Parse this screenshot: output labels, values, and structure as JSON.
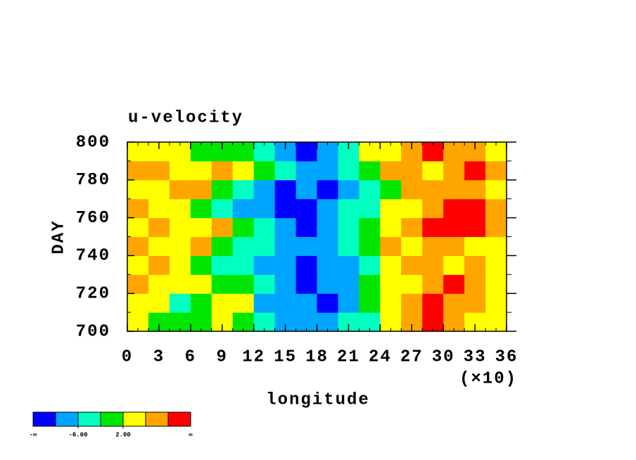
{
  "chart_data": {
    "type": "heatmap",
    "title": "u-velocity",
    "x_label": "longitude",
    "x_multiplier": "(×10)",
    "y_label": "DAY",
    "xlim": [
      0,
      36
    ],
    "xticks": [
      0,
      3,
      6,
      9,
      12,
      15,
      18,
      21,
      24,
      27,
      30,
      33,
      36
    ],
    "xminorticks": [
      1,
      2,
      4,
      5,
      7,
      8,
      10,
      11,
      13,
      14,
      16,
      17,
      19,
      20,
      22,
      23,
      25,
      26,
      28,
      29,
      31,
      32,
      34,
      35
    ],
    "ylim": [
      700,
      800
    ],
    "yticks": [
      700,
      720,
      740,
      760,
      780,
      800
    ],
    "yminorticks": [
      710,
      730,
      750,
      770,
      790
    ],
    "x": [
      1,
      3,
      5,
      7,
      9,
      11,
      13,
      15,
      17,
      19,
      21,
      23,
      25,
      27,
      29,
      31,
      33,
      35
    ],
    "y": [
      705,
      715,
      725,
      735,
      745,
      755,
      765,
      775,
      785,
      795
    ],
    "z": [
      [
        4,
        0,
        -2,
        1,
        3,
        -1,
        -4,
        -8,
        -7,
        -8,
        -6,
        -3,
        3,
        8,
        11,
        7,
        4,
        2
      ],
      [
        3,
        2,
        -4,
        0,
        5,
        2,
        -7,
        -10,
        -9,
        -11,
        -8,
        -2,
        2,
        7,
        12,
        9,
        6,
        3
      ],
      [
        6,
        4,
        2,
        3,
        1,
        0,
        -4,
        -8,
        -12,
        -10,
        -8,
        0,
        3,
        5,
        8,
        10,
        7,
        5
      ],
      [
        2,
        7,
        5,
        0,
        -3,
        -6,
        -7,
        -9,
        -11,
        -9,
        -7,
        -3,
        5,
        9,
        6,
        4,
        8,
        3
      ],
      [
        8,
        4,
        3,
        7,
        -2,
        -3,
        -5,
        -8,
        -10,
        -7,
        -3,
        0,
        6,
        4,
        9,
        7,
        5,
        2
      ],
      [
        4,
        6,
        2,
        5,
        8,
        -1,
        -6,
        -9,
        -11,
        -8,
        -4,
        1,
        3,
        7,
        10,
        12,
        11,
        6
      ],
      [
        9,
        5,
        3,
        0,
        -4,
        -8,
        -10,
        -12,
        -11,
        -8,
        -6,
        -3,
        2,
        5,
        8,
        11,
        12,
        9
      ],
      [
        3,
        5,
        8,
        6,
        -2,
        -5,
        -7,
        -11,
        -10,
        -12,
        -9,
        -5,
        1,
        8,
        6,
        9,
        7,
        5
      ],
      [
        7,
        6,
        3,
        2,
        9,
        4,
        0,
        -6,
        -9,
        -7,
        -3,
        1,
        6,
        9,
        5,
        8,
        10,
        7
      ],
      [
        3,
        2,
        5,
        0,
        1,
        -2,
        -4,
        -9,
        -11,
        -7,
        -3,
        3,
        5,
        7,
        10,
        8,
        6,
        4
      ]
    ],
    "colorbar": {
      "levels": [
        -10,
        -6,
        -2,
        2,
        6,
        10
      ],
      "colors": [
        "#0000ff",
        "#00a5ff",
        "#00ffc0",
        "#00e600",
        "#ffff00",
        "#ffa500",
        "#ff0000"
      ],
      "min_label": "-∞",
      "max_label": "∞",
      "ticks": [
        {
          "value": -6,
          "label": "-6.00"
        },
        {
          "value": 2,
          "label": "2.00"
        }
      ]
    }
  }
}
